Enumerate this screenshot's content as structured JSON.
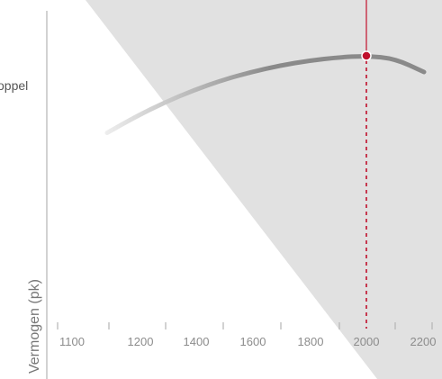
{
  "chart_data": {
    "type": "line",
    "ylabel": "Vermogen (pk)",
    "x_tick_labels": [
      "1100",
      "1200",
      "1400",
      "1600",
      "1800",
      "2000",
      "2200"
    ],
    "series": [
      {
        "name": "oppel",
        "x": [
          1100,
          1200,
          1300,
          1400,
          1500,
          1600,
          1700,
          1800,
          1900,
          2000,
          2100,
          2200
        ],
        "values": [
          67,
          71,
          74.5,
          77.5,
          80,
          82,
          83.6,
          84.8,
          85.6,
          86,
          85.3,
          82
        ]
      }
    ],
    "marker": {
      "x": 2000,
      "value": 86
    },
    "colors": {
      "accent": "#c0102c",
      "curve": "#8a8a8a",
      "shade": "#e1e1e1",
      "axis": "#b5b5b5",
      "text": "#8c8c8c"
    }
  }
}
